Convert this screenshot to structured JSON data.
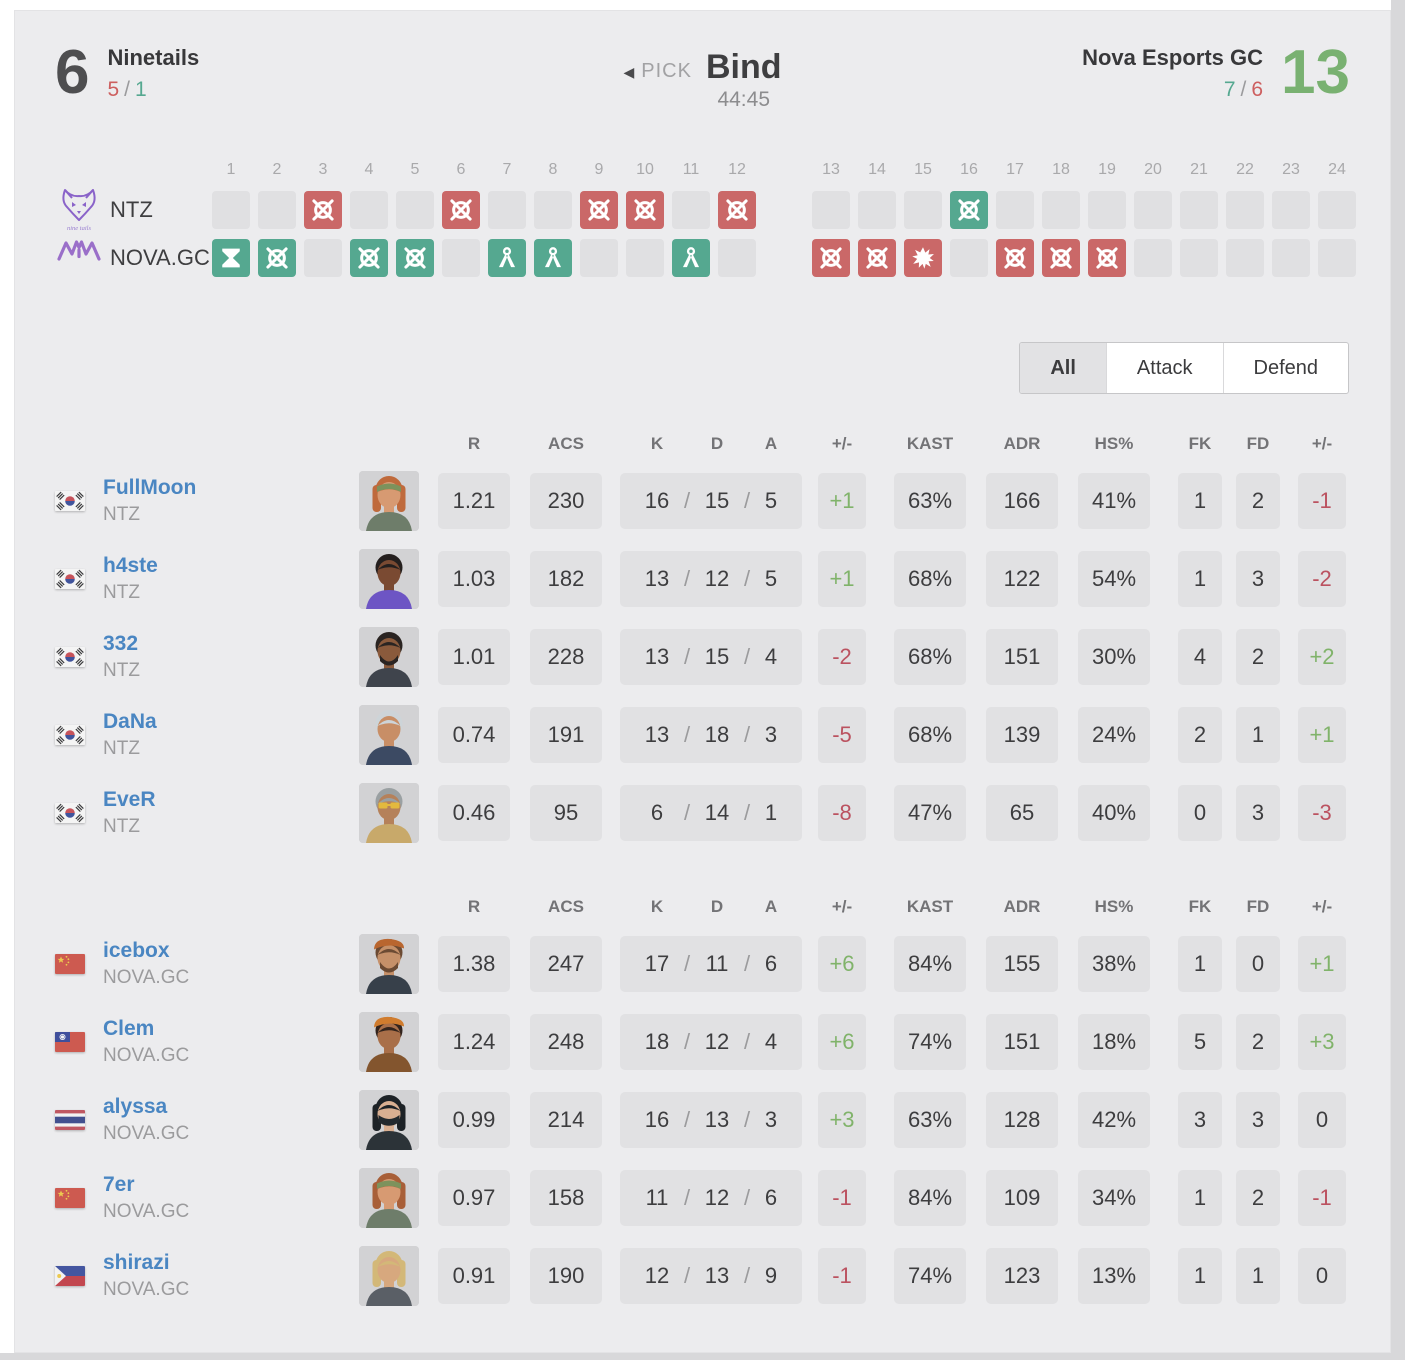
{
  "scoreboard": {
    "left": {
      "name": "Ninetails",
      "score": "6",
      "half1": "5",
      "half1_tone": "red",
      "half2": "1",
      "half2_tone": "teal",
      "result": "loss"
    },
    "right": {
      "name": "Nova Esports GC",
      "score": "13",
      "half1": "7",
      "half1_tone": "teal",
      "half2": "6",
      "half2_tone": "red",
      "result": "win"
    },
    "map": {
      "pick_label": "PICK",
      "name": "Bind",
      "duration": "44:45"
    }
  },
  "timeline": {
    "round_numbers": [
      "1",
      "2",
      "3",
      "4",
      "5",
      "6",
      "7",
      "8",
      "9",
      "10",
      "11",
      "12",
      "13",
      "14",
      "15",
      "16",
      "17",
      "18",
      "19",
      "20",
      "21",
      "22",
      "23",
      "24"
    ],
    "rows": [
      {
        "abbr": "NTZ",
        "logo": "ninetails",
        "logo_caption": "nine tails",
        "cells": [
          null,
          null,
          {
            "c": "red",
            "i": "elimination"
          },
          null,
          null,
          {
            "c": "red",
            "i": "elimination"
          },
          null,
          null,
          {
            "c": "red",
            "i": "elimination"
          },
          {
            "c": "red",
            "i": "elimination"
          },
          null,
          {
            "c": "red",
            "i": "elimination"
          },
          null,
          null,
          null,
          {
            "c": "green",
            "i": "elimination"
          },
          null,
          null,
          null,
          null,
          null,
          null,
          null,
          null
        ]
      },
      {
        "abbr": "NOVA.GC",
        "logo": "nova",
        "logo_caption": "",
        "cells": [
          {
            "c": "green",
            "i": "time"
          },
          {
            "c": "green",
            "i": "elimination"
          },
          null,
          {
            "c": "green",
            "i": "elimination"
          },
          {
            "c": "green",
            "i": "elimination"
          },
          null,
          {
            "c": "green",
            "i": "defuse"
          },
          {
            "c": "green",
            "i": "defuse"
          },
          null,
          null,
          {
            "c": "green",
            "i": "defuse"
          },
          null,
          {
            "c": "red",
            "i": "elimination"
          },
          {
            "c": "red",
            "i": "elimination"
          },
          {
            "c": "red",
            "i": "explosion"
          },
          null,
          {
            "c": "red",
            "i": "elimination"
          },
          {
            "c": "red",
            "i": "elimination"
          },
          {
            "c": "red",
            "i": "elimination"
          },
          null,
          null,
          null,
          null,
          null
        ]
      }
    ]
  },
  "tabs": [
    "All",
    "Attack",
    "Defend"
  ],
  "table_headers": {
    "r": "R",
    "acs": "ACS",
    "k": "K",
    "d": "D",
    "a": "A",
    "pm": "+/-",
    "kast": "KAST",
    "adr": "ADR",
    "hs": "HS%",
    "fk": "FK",
    "fd": "FD",
    "pm2": "+/-"
  },
  "colors": {
    "win_green": "#79b171",
    "loss_gray": "#4e4e50",
    "round_red": "#ca6868",
    "round_green": "#55a890",
    "pos_green": "#80b36a",
    "neg_red": "#bb5260",
    "link_blue": "#4a86c2",
    "logo_purple": "#8a63c9"
  },
  "teamA": {
    "abbr": "NTZ",
    "players": [
      {
        "name": "FullMoon",
        "team": "NTZ",
        "country": "kr",
        "portrait": {
          "skin": "#d79a72",
          "hair": "#bf6a3c",
          "hairstyle": "long",
          "top": "#6e7d6a",
          "acc": "bandana",
          "accColor": "#7d925c",
          "beard": false
        },
        "stats": {
          "r": "1.21",
          "acs": "230",
          "k": "16",
          "d": "15",
          "a": "5",
          "pm": {
            "text": "+1",
            "tone": "pos"
          },
          "kast": "63%",
          "adr": "166",
          "hs": "41%",
          "fk": "1",
          "fd": "2",
          "pm2": {
            "text": "-1",
            "tone": "neg"
          }
        }
      },
      {
        "name": "h4ste",
        "team": "NTZ",
        "country": "kr",
        "portrait": {
          "skin": "#7a4a32",
          "hair": "#241f1e",
          "hairstyle": "short",
          "top": "#6d55c4",
          "acc": "none",
          "accColor": "",
          "beard": false
        },
        "stats": {
          "r": "1.03",
          "acs": "182",
          "k": "13",
          "d": "12",
          "a": "5",
          "pm": {
            "text": "+1",
            "tone": "pos"
          },
          "kast": "68%",
          "adr": "122",
          "hs": "54%",
          "fk": "1",
          "fd": "3",
          "pm2": {
            "text": "-2",
            "tone": "neg"
          }
        }
      },
      {
        "name": "332",
        "team": "NTZ",
        "country": "kr",
        "portrait": {
          "skin": "#8a5a3c",
          "hair": "#2a2422",
          "hairstyle": "short",
          "top": "#3f444c",
          "acc": "none",
          "accColor": "",
          "beard": true
        },
        "stats": {
          "r": "1.01",
          "acs": "228",
          "k": "13",
          "d": "15",
          "a": "4",
          "pm": {
            "text": "-2",
            "tone": "neg"
          },
          "kast": "68%",
          "adr": "151",
          "hs": "30%",
          "fk": "4",
          "fd": "2",
          "pm2": {
            "text": "+2",
            "tone": "pos"
          }
        }
      },
      {
        "name": "DaNa",
        "team": "NTZ",
        "country": "kr",
        "portrait": {
          "skin": "#c88e66",
          "hair": "#cdd4d8",
          "hairstyle": "short",
          "top": "#3c4a63",
          "acc": "none",
          "accColor": "",
          "beard": false
        },
        "stats": {
          "r": "0.74",
          "acs": "191",
          "k": "13",
          "d": "18",
          "a": "3",
          "pm": {
            "text": "-5",
            "tone": "neg"
          },
          "kast": "68%",
          "adr": "139",
          "hs": "24%",
          "fk": "2",
          "fd": "1",
          "pm2": {
            "text": "+1",
            "tone": "pos"
          }
        }
      },
      {
        "name": "EveR",
        "team": "NTZ",
        "country": "kr",
        "portrait": {
          "skin": "#b5815a",
          "hair": "#9aa0a2",
          "hairstyle": "short",
          "top": "#c8a96a",
          "acc": "glasses",
          "accColor": "#e3b93e",
          "beard": false
        },
        "stats": {
          "r": "0.46",
          "acs": "95",
          "k": "6",
          "d": "14",
          "a": "1",
          "pm": {
            "text": "-8",
            "tone": "neg"
          },
          "kast": "47%",
          "adr": "65",
          "hs": "40%",
          "fk": "0",
          "fd": "3",
          "pm2": {
            "text": "-3",
            "tone": "neg"
          }
        }
      }
    ]
  },
  "teamB": {
    "abbr": "NOVA.GC",
    "players": [
      {
        "name": "icebox",
        "team": "NOVA.GC",
        "country": "cn",
        "portrait": {
          "skin": "#c59069",
          "hair": "#6b4a33",
          "hairstyle": "short",
          "top": "#37404a",
          "acc": "beret",
          "accColor": "#b9662f",
          "beard": true
        },
        "stats": {
          "r": "1.38",
          "acs": "247",
          "k": "17",
          "d": "11",
          "a": "6",
          "pm": {
            "text": "+6",
            "tone": "pos"
          },
          "kast": "84%",
          "adr": "155",
          "hs": "38%",
          "fk": "1",
          "fd": "0",
          "pm2": {
            "text": "+1",
            "tone": "pos"
          }
        }
      },
      {
        "name": "Clem",
        "team": "NOVA.GC",
        "country": "tw",
        "portrait": {
          "skin": "#a96f49",
          "hair": "#33241d",
          "hairstyle": "short",
          "top": "#83552e",
          "acc": "beret",
          "accColor": "#d07c2e",
          "beard": false
        },
        "stats": {
          "r": "1.24",
          "acs": "248",
          "k": "18",
          "d": "12",
          "a": "4",
          "pm": {
            "text": "+6",
            "tone": "pos"
          },
          "kast": "74%",
          "adr": "151",
          "hs": "18%",
          "fk": "5",
          "fd": "2",
          "pm2": {
            "text": "+3",
            "tone": "pos"
          }
        }
      },
      {
        "name": "alyssa",
        "team": "NOVA.GC",
        "country": "th",
        "portrait": {
          "skin": "#d9af91",
          "hair": "#1d2226",
          "hairstyle": "long",
          "top": "#2c3338",
          "acc": "mask",
          "accColor": "#23292e",
          "beard": false
        },
        "stats": {
          "r": "0.99",
          "acs": "214",
          "k": "16",
          "d": "13",
          "a": "3",
          "pm": {
            "text": "+3",
            "tone": "pos"
          },
          "kast": "63%",
          "adr": "128",
          "hs": "42%",
          "fk": "3",
          "fd": "3",
          "pm2": {
            "text": "0",
            "tone": "zero"
          }
        }
      },
      {
        "name": "7er",
        "team": "NOVA.GC",
        "country": "cn",
        "portrait": {
          "skin": "#d79a72",
          "hair": "#a85f38",
          "hairstyle": "long",
          "top": "#6e7d6a",
          "acc": "bandana",
          "accColor": "#7d925c",
          "beard": false
        },
        "stats": {
          "r": "0.97",
          "acs": "158",
          "k": "11",
          "d": "12",
          "a": "6",
          "pm": {
            "text": "-1",
            "tone": "neg"
          },
          "kast": "84%",
          "adr": "109",
          "hs": "34%",
          "fk": "1",
          "fd": "2",
          "pm2": {
            "text": "-1",
            "tone": "neg"
          }
        }
      },
      {
        "name": "shirazi",
        "team": "NOVA.GC",
        "country": "ph",
        "portrait": {
          "skin": "#d7a87e",
          "hair": "#d3b878",
          "hairstyle": "long",
          "top": "#5a5f66",
          "acc": "none",
          "accColor": "",
          "beard": false
        },
        "stats": {
          "r": "0.91",
          "acs": "190",
          "k": "12",
          "d": "13",
          "a": "9",
          "pm": {
            "text": "-1",
            "tone": "neg"
          },
          "kast": "74%",
          "adr": "123",
          "hs": "13%",
          "fk": "1",
          "fd": "1",
          "pm2": {
            "text": "0",
            "tone": "zero"
          }
        }
      }
    ]
  }
}
